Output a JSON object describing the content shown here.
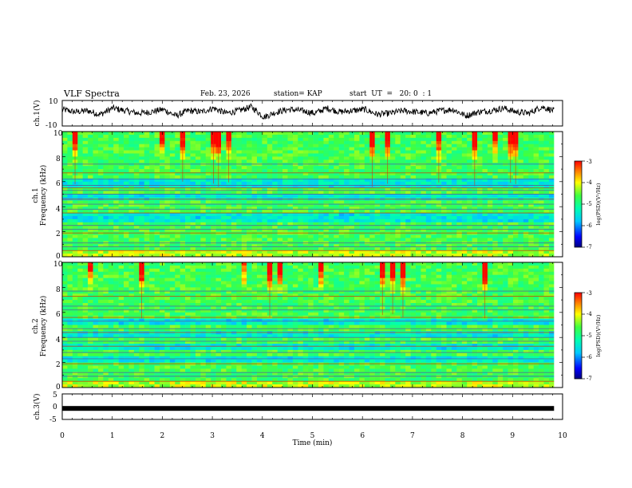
{
  "header": {
    "title": "VLF Spectra",
    "date": "Feb. 23, 2026",
    "station": "station= KAP",
    "start": "start  UT  =   20: 0  : 1"
  },
  "chart_data": [
    {
      "type": "line",
      "name": "ch1-waveform",
      "ylabel": "ch.1(V)",
      "ylim": [
        -10,
        10
      ],
      "yticks": [
        "10",
        "-10"
      ],
      "x_range_min": [
        0,
        9.83
      ],
      "approx_level_v": [
        3,
        1,
        2,
        -1,
        4,
        2,
        0,
        1,
        3,
        -2,
        2,
        1,
        4,
        0,
        2,
        5,
        -3,
        1,
        3,
        2,
        0,
        4,
        1,
        2,
        3,
        -1,
        0,
        2,
        1,
        0,
        2,
        3,
        -2,
        1,
        2,
        4,
        1,
        0,
        5,
        2
      ]
    },
    {
      "type": "heatmap",
      "name": "ch1-spectrogram",
      "ylabel": "Frequency (kHz)",
      "channel_label": "ch.1",
      "ylim": [
        0,
        10
      ],
      "yticks": [
        "0",
        "2",
        "4",
        "6",
        "8",
        "10"
      ],
      "x_range_min": [
        0,
        9.83
      ],
      "colorbar": {
        "label": "log(PSD)(V²/Hz)",
        "range": [
          -7,
          -3
        ],
        "ticks": [
          "-3",
          "-4",
          "-5",
          "-6",
          "-7"
        ]
      },
      "narrowband_lines_khz": [
        0.5,
        0.8,
        1.1,
        1.9,
        2.2,
        2.5,
        3.5,
        3.8,
        4.2,
        4.6,
        5.0,
        5.3,
        5.5,
        5.7,
        6.2,
        6.7,
        7.4
      ],
      "quiet_bands_khz": [
        [
          2.8,
          3.4
        ],
        [
          4.5,
          5.0
        ],
        [
          5.6,
          6.2
        ]
      ]
    },
    {
      "type": "heatmap",
      "name": "ch2-spectrogram",
      "ylabel": "Frequency (kHz)",
      "channel_label": "ch.2",
      "ylim": [
        0,
        10
      ],
      "yticks": [
        "0",
        "2",
        "4",
        "6",
        "8",
        "10"
      ],
      "x_range_min": [
        0,
        9.83
      ],
      "colorbar": {
        "label": "log(PSD)(V²/Hz)",
        "range": [
          -7,
          -3
        ],
        "ticks": [
          "-3",
          "-4",
          "-5",
          "-6",
          "-7"
        ]
      },
      "narrowband_lines_khz": [
        0.5,
        0.9,
        1.2,
        1.9,
        2.3,
        2.8,
        3.3,
        3.7,
        4.0,
        4.4,
        4.7,
        5.3,
        5.6,
        6.2,
        6.5,
        7.3,
        7.7
      ],
      "quiet_bands_khz": [
        [
          2.0,
          2.6
        ],
        [
          3.0,
          3.6
        ],
        [
          4.0,
          4.5
        ],
        [
          5.0,
          5.6
        ]
      ]
    },
    {
      "type": "line",
      "name": "ch3-waveform",
      "ylabel": "ch.3(V)",
      "ylim": [
        -5,
        5
      ],
      "yticks": [
        "5",
        "0",
        "-5"
      ],
      "x_range_min": [
        0,
        9.83
      ],
      "level_v": -0.7,
      "xlabel": "Time  (min)",
      "xlim": [
        0,
        10
      ],
      "xticks": [
        "0",
        "1",
        "2",
        "3",
        "4",
        "5",
        "6",
        "7",
        "8",
        "9",
        "10"
      ]
    }
  ]
}
